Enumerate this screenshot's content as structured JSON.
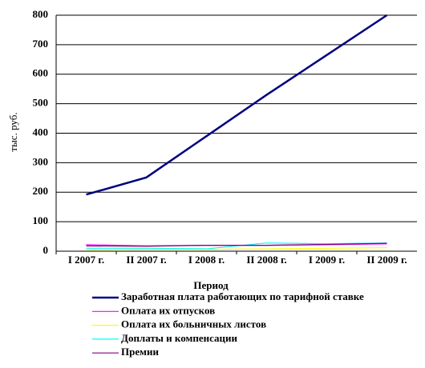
{
  "chart_data": {
    "type": "line",
    "x_label": "Период",
    "y_label": "тыс. руб.",
    "categories": [
      "I  2007 г.",
      "II  2007 г.",
      "I  2008 г.",
      "II  2008 г.",
      "I  2009 г.",
      "II  2009 г."
    ],
    "ylim": [
      0,
      800
    ],
    "yticks": [
      0,
      100,
      200,
      300,
      400,
      500,
      600,
      700,
      800
    ],
    "grid": true,
    "series": [
      {
        "name": "Заработная плата работающих по тарифной ставке",
        "color": "#000080",
        "values": [
          192,
          250,
          390,
          530,
          665,
          800
        ]
      },
      {
        "name": "Оплата их отпусков",
        "color": "#ff00ff",
        "values": [
          22,
          18,
          20,
          20,
          22,
          25
        ]
      },
      {
        "name": "Оплата их больничных листов",
        "color": "#ffff00",
        "values": [
          5,
          6,
          6,
          8,
          10,
          12
        ]
      },
      {
        "name": "Доплаты и компенсации",
        "color": "#00ffff",
        "values": [
          10,
          10,
          8,
          28,
          25,
          28
        ]
      },
      {
        "name": "Премии",
        "color": "#800080",
        "values": [
          18,
          17,
          20,
          20,
          23,
          27
        ]
      }
    ]
  }
}
